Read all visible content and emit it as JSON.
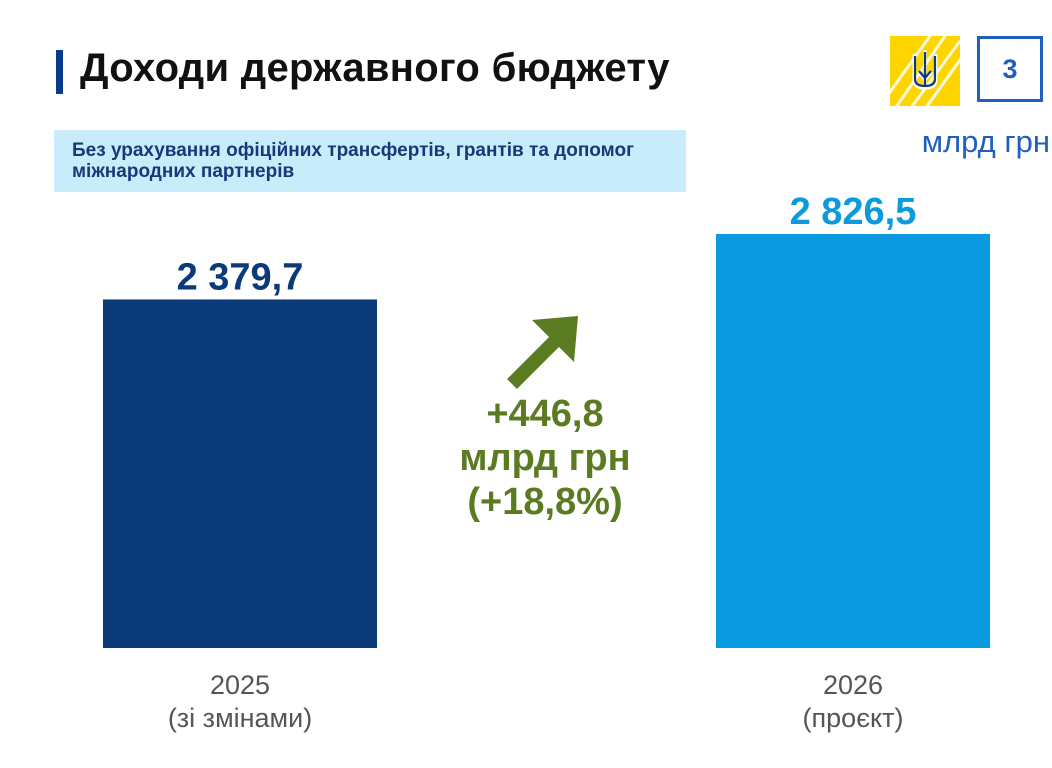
{
  "header": {
    "title": "Доходи державного бюджету",
    "page_number": "3",
    "unit": "млрд грн"
  },
  "note": {
    "text": "Без урахування офіційних трансфертів, грантів та допомог міжнародних партнерів"
  },
  "change": {
    "amount": "+446,8",
    "unit": "млрд грн",
    "percent": "(+18,8%)"
  },
  "colors": {
    "bar_2025": "#0a3a78",
    "bar_2026": "#0a9ae0",
    "value_2025": "#0a3a78",
    "value_2026": "#0a9ae0",
    "accent_green": "#5a7b22",
    "emblem_yellow": "#ffd500",
    "brand_blue": "#1f5fbf"
  },
  "chart_data": {
    "type": "bar",
    "categories": [
      "2025\n(зі змінами)",
      "2026\n(проєкт)"
    ],
    "category_lines": [
      [
        "2025",
        "(зі змінами)"
      ],
      [
        "2026",
        "(проєкт)"
      ]
    ],
    "values": [
      2379.7,
      2826.5
    ],
    "value_labels": [
      "2 379,7",
      "2 826,5"
    ],
    "ylabel": "млрд грн",
    "ylim": [
      0,
      2826.5
    ],
    "grid": false,
    "legend": "none"
  }
}
